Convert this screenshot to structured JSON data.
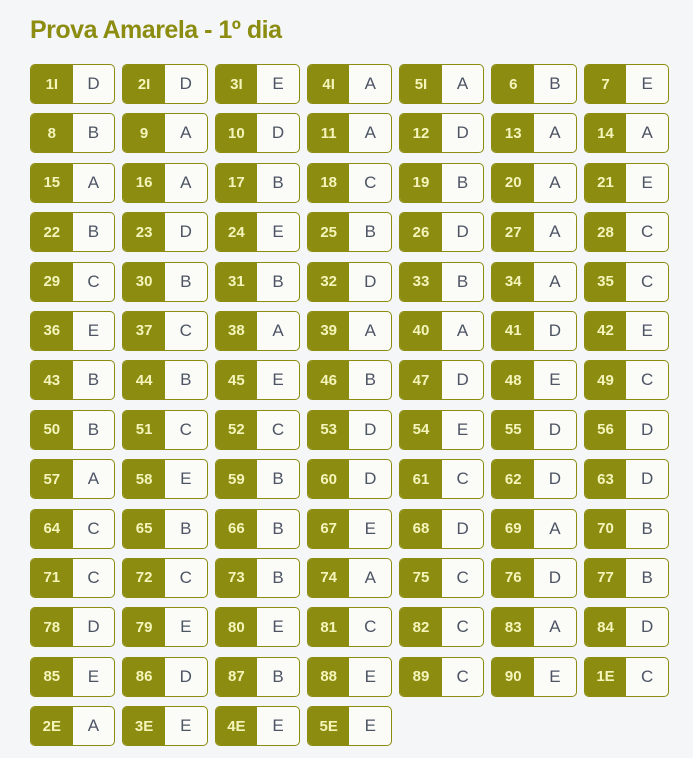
{
  "title": "Prova Amarela - 1º dia",
  "colors": {
    "accent_olive": "#8b8c10",
    "page_background": "#f4f6f7",
    "cell_background": "#fbfbf8",
    "question_number_text": "#f5f5bb",
    "answer_letter_text": "#4d5564"
  },
  "answer_key": {
    "items": [
      {
        "q": "1I",
        "a": "D"
      },
      {
        "q": "2I",
        "a": "D"
      },
      {
        "q": "3I",
        "a": "E"
      },
      {
        "q": "4I",
        "a": "A"
      },
      {
        "q": "5I",
        "a": "A"
      },
      {
        "q": "6",
        "a": "B"
      },
      {
        "q": "7",
        "a": "E"
      },
      {
        "q": "8",
        "a": "B"
      },
      {
        "q": "9",
        "a": "A"
      },
      {
        "q": "10",
        "a": "D"
      },
      {
        "q": "11",
        "a": "A"
      },
      {
        "q": "12",
        "a": "D"
      },
      {
        "q": "13",
        "a": "A"
      },
      {
        "q": "14",
        "a": "A"
      },
      {
        "q": "15",
        "a": "A"
      },
      {
        "q": "16",
        "a": "A"
      },
      {
        "q": "17",
        "a": "B"
      },
      {
        "q": "18",
        "a": "C"
      },
      {
        "q": "19",
        "a": "B"
      },
      {
        "q": "20",
        "a": "A"
      },
      {
        "q": "21",
        "a": "E"
      },
      {
        "q": "22",
        "a": "B"
      },
      {
        "q": "23",
        "a": "D"
      },
      {
        "q": "24",
        "a": "E"
      },
      {
        "q": "25",
        "a": "B"
      },
      {
        "q": "26",
        "a": "D"
      },
      {
        "q": "27",
        "a": "A"
      },
      {
        "q": "28",
        "a": "C"
      },
      {
        "q": "29",
        "a": "C"
      },
      {
        "q": "30",
        "a": "B"
      },
      {
        "q": "31",
        "a": "B"
      },
      {
        "q": "32",
        "a": "D"
      },
      {
        "q": "33",
        "a": "B"
      },
      {
        "q": "34",
        "a": "A"
      },
      {
        "q": "35",
        "a": "C"
      },
      {
        "q": "36",
        "a": "E"
      },
      {
        "q": "37",
        "a": "C"
      },
      {
        "q": "38",
        "a": "A"
      },
      {
        "q": "39",
        "a": "A"
      },
      {
        "q": "40",
        "a": "A"
      },
      {
        "q": "41",
        "a": "D"
      },
      {
        "q": "42",
        "a": "E"
      },
      {
        "q": "43",
        "a": "B"
      },
      {
        "q": "44",
        "a": "B"
      },
      {
        "q": "45",
        "a": "E"
      },
      {
        "q": "46",
        "a": "B"
      },
      {
        "q": "47",
        "a": "D"
      },
      {
        "q": "48",
        "a": "E"
      },
      {
        "q": "49",
        "a": "C"
      },
      {
        "q": "50",
        "a": "B"
      },
      {
        "q": "51",
        "a": "C"
      },
      {
        "q": "52",
        "a": "C"
      },
      {
        "q": "53",
        "a": "D"
      },
      {
        "q": "54",
        "a": "E"
      },
      {
        "q": "55",
        "a": "D"
      },
      {
        "q": "56",
        "a": "D"
      },
      {
        "q": "57",
        "a": "A"
      },
      {
        "q": "58",
        "a": "E"
      },
      {
        "q": "59",
        "a": "B"
      },
      {
        "q": "60",
        "a": "D"
      },
      {
        "q": "61",
        "a": "C"
      },
      {
        "q": "62",
        "a": "D"
      },
      {
        "q": "63",
        "a": "D"
      },
      {
        "q": "64",
        "a": "C"
      },
      {
        "q": "65",
        "a": "B"
      },
      {
        "q": "66",
        "a": "B"
      },
      {
        "q": "67",
        "a": "E"
      },
      {
        "q": "68",
        "a": "D"
      },
      {
        "q": "69",
        "a": "A"
      },
      {
        "q": "70",
        "a": "B"
      },
      {
        "q": "71",
        "a": "C"
      },
      {
        "q": "72",
        "a": "C"
      },
      {
        "q": "73",
        "a": "B"
      },
      {
        "q": "74",
        "a": "A"
      },
      {
        "q": "75",
        "a": "C"
      },
      {
        "q": "76",
        "a": "D"
      },
      {
        "q": "77",
        "a": "B"
      },
      {
        "q": "78",
        "a": "D"
      },
      {
        "q": "79",
        "a": "E"
      },
      {
        "q": "80",
        "a": "E"
      },
      {
        "q": "81",
        "a": "C"
      },
      {
        "q": "82",
        "a": "C"
      },
      {
        "q": "83",
        "a": "A"
      },
      {
        "q": "84",
        "a": "D"
      },
      {
        "q": "85",
        "a": "E"
      },
      {
        "q": "86",
        "a": "D"
      },
      {
        "q": "87",
        "a": "B"
      },
      {
        "q": "88",
        "a": "E"
      },
      {
        "q": "89",
        "a": "C"
      },
      {
        "q": "90",
        "a": "E"
      },
      {
        "q": "1E",
        "a": "C"
      },
      {
        "q": "2E",
        "a": "A"
      },
      {
        "q": "3E",
        "a": "E"
      },
      {
        "q": "4E",
        "a": "E"
      },
      {
        "q": "5E",
        "a": "E"
      }
    ]
  }
}
